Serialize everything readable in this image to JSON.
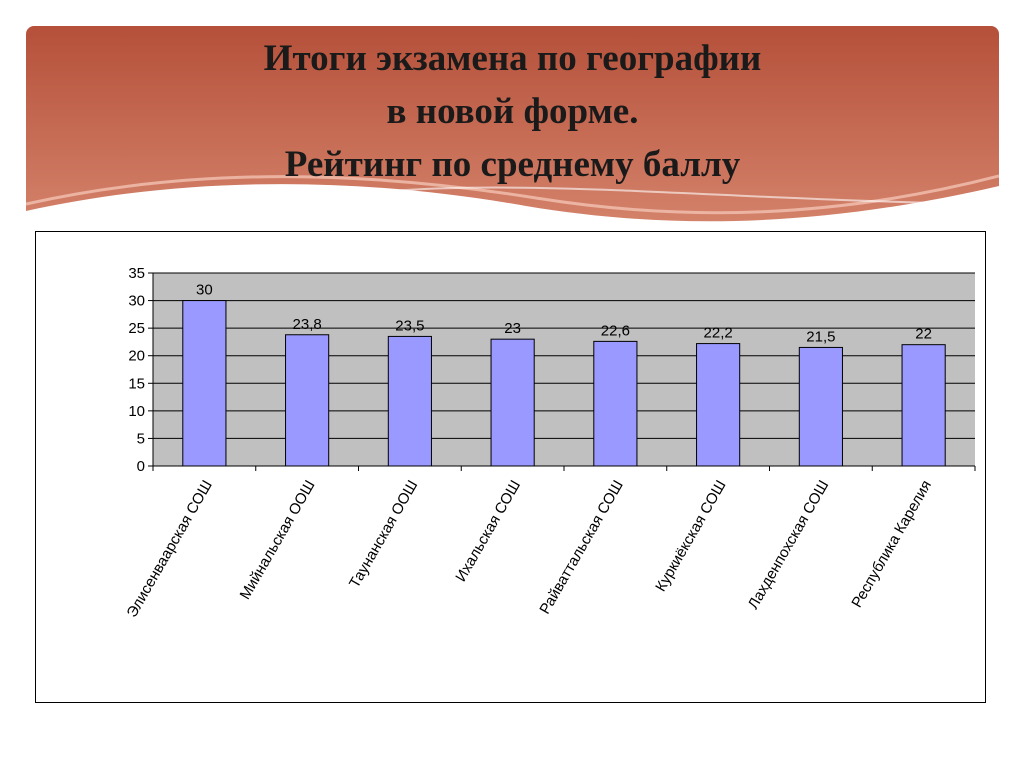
{
  "slide": {
    "title_lines": [
      "Итоги экзамена по географии",
      "в новой форме.",
      "Рейтинг по среднему баллу"
    ],
    "banner_color": "#b5503a"
  },
  "chart_data": {
    "type": "bar",
    "title": "",
    "xlabel": "",
    "ylabel": "",
    "categories": [
      "Элисенваарская СОШ",
      "Мийнальская ООШ",
      "Таунанская ООШ",
      "Ихальская СОШ",
      "Райваттальская СОШ",
      "Куркиёкская СОШ",
      "Лахденпохская СОШ",
      "Республика Карелия"
    ],
    "values": [
      30,
      23.8,
      23.5,
      23,
      22.6,
      22.2,
      21.5,
      22
    ],
    "data_labels": [
      "30",
      "23,8",
      "23,5",
      "23",
      "22,6",
      "22,2",
      "21,5",
      "22"
    ],
    "ylim": [
      0,
      35
    ],
    "yticks": [
      0,
      5,
      10,
      15,
      20,
      25,
      30,
      35
    ],
    "grid": true,
    "legend": "none",
    "bar_color": "#9999ff",
    "plot_background": "#c0c0c0"
  }
}
